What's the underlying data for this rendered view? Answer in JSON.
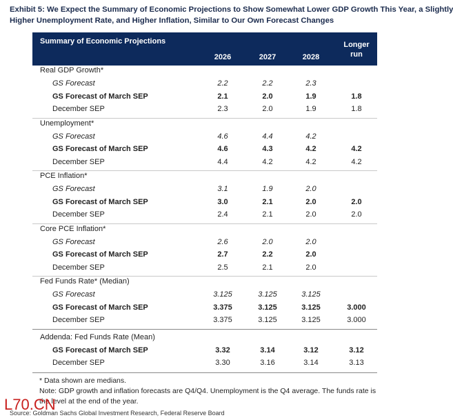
{
  "title": [
    "Exhibit 5: We Expect the Summary of Economic Projections to Show Somewhat Lower GDP Growth This Year, a Slightly",
    "Higher Unemployment Rate, and Higher Inflation, Similar to Our Own Forecast Changes"
  ],
  "table": {
    "header": "Summary of Economic Projections",
    "columns": [
      "2026",
      "2027",
      "2028",
      "Longer run"
    ],
    "sections": [
      {
        "label": "Real GDP Growth*",
        "rows": [
          {
            "label": "GS Forecast",
            "style": "italic",
            "values": [
              "2.2",
              "2.2",
              "2.3",
              null
            ]
          },
          {
            "label": "GS Forecast of March SEP",
            "style": "bold",
            "values": [
              "2.1",
              "2.0",
              "1.9",
              "1.8"
            ]
          },
          {
            "label": "December SEP",
            "style": "plain",
            "values": [
              "2.3",
              "2.0",
              "1.9",
              "1.8"
            ]
          }
        ]
      },
      {
        "label": "Unemployment*",
        "rows": [
          {
            "label": "GS Forecast",
            "style": "italic",
            "values": [
              "4.6",
              "4.4",
              "4.2",
              null
            ]
          },
          {
            "label": "GS Forecast of March SEP",
            "style": "bold",
            "values": [
              "4.6",
              "4.3",
              "4.2",
              "4.2"
            ]
          },
          {
            "label": "December SEP",
            "style": "plain",
            "values": [
              "4.4",
              "4.2",
              "4.2",
              "4.2"
            ]
          }
        ]
      },
      {
        "label": "PCE Inflation*",
        "rows": [
          {
            "label": "GS Forecast",
            "style": "italic",
            "values": [
              "3.1",
              "1.9",
              "2.0",
              null
            ]
          },
          {
            "label": "GS Forecast of March SEP",
            "style": "bold",
            "values": [
              "3.0",
              "2.1",
              "2.0",
              "2.0"
            ]
          },
          {
            "label": "December SEP",
            "style": "plain",
            "values": [
              "2.4",
              "2.1",
              "2.0",
              "2.0"
            ]
          }
        ]
      },
      {
        "label": "Core PCE Inflation*",
        "rows": [
          {
            "label": "GS Forecast",
            "style": "italic",
            "values": [
              "2.6",
              "2.0",
              "2.0",
              null
            ]
          },
          {
            "label": "GS Forecast of March SEP",
            "style": "bold",
            "values": [
              "2.7",
              "2.2",
              "2.0",
              null
            ]
          },
          {
            "label": "December SEP",
            "style": "plain",
            "values": [
              "2.5",
              "2.1",
              "2.0",
              null
            ]
          }
        ]
      },
      {
        "label": "Fed Funds Rate* (Median)",
        "rows": [
          {
            "label": "GS Forecast",
            "style": "italic",
            "values": [
              "3.125",
              "3.125",
              "3.125",
              null
            ]
          },
          {
            "label": "GS Forecast of March SEP",
            "style": "bold",
            "values": [
              "3.375",
              "3.125",
              "3.125",
              "3.000"
            ]
          },
          {
            "label": "December SEP",
            "style": "plain",
            "values": [
              "3.375",
              "3.125",
              "3.125",
              "3.000"
            ]
          }
        ]
      },
      {
        "label": "Addenda: Fed Funds Rate (Mean)",
        "rows": [
          {
            "label": "GS Forecast of March SEP",
            "style": "bold",
            "values": [
              "3.32",
              "3.14",
              "3.12",
              "3.12"
            ]
          },
          {
            "label": "December SEP",
            "style": "plain",
            "values": [
              "3.30",
              "3.16",
              "3.14",
              "3.13"
            ]
          }
        ]
      }
    ]
  },
  "notes": [
    "* Data shown are medians.",
    "Note: GDP growth and inflation forecasts are Q4/Q4.  Unemployment is the Q4 average.  The funds rate is the level at the end of the year."
  ],
  "watermark": "L70.CN",
  "source": "Source: Goldman Sachs Global Investment Research, Federal Reserve Board"
}
